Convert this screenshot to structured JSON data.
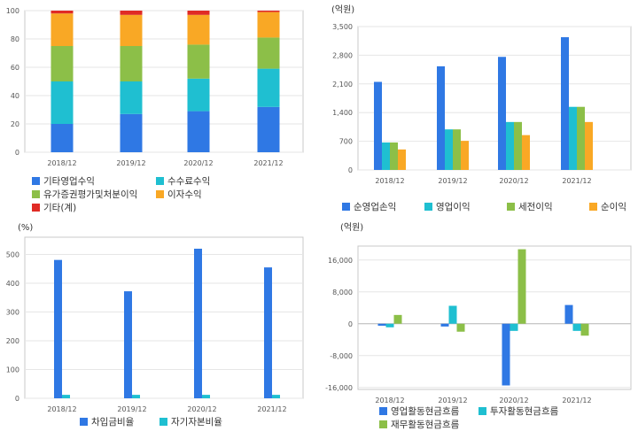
{
  "chart_data": [
    {
      "type": "bar",
      "stacked": true,
      "categories": [
        "2018/12",
        "2019/12",
        "2020/12",
        "2021/12"
      ],
      "ylim": [
        0,
        100
      ],
      "yticks": [
        0,
        20,
        40,
        60,
        80,
        100
      ],
      "unit": "",
      "grid": true,
      "legend_position": "bottom",
      "series": [
        {
          "name": "기타영업수익",
          "color": "#2f78e4",
          "values": [
            20,
            27,
            29,
            32
          ]
        },
        {
          "name": "수수료수익",
          "color": "#1fbfd1",
          "values": [
            30,
            23,
            23,
            27
          ]
        },
        {
          "name": "유가증권평가및처분이익",
          "color": "#8cbf48",
          "values": [
            25,
            25,
            24,
            22
          ]
        },
        {
          "name": "이자수익",
          "color": "#f9a825",
          "values": [
            23,
            22,
            21,
            18
          ]
        },
        {
          "name": "기타(계)",
          "color": "#e02b25",
          "values": [
            2,
            3,
            3,
            1
          ]
        }
      ]
    },
    {
      "type": "bar",
      "categories": [
        "2018/12",
        "2019/12",
        "2020/12",
        "2021/12"
      ],
      "ylim": [
        0,
        3500
      ],
      "yticks": [
        0,
        700,
        1400,
        2100,
        2800,
        3500
      ],
      "unit": "(억원)",
      "grid": true,
      "legend_position": "bottom",
      "series": [
        {
          "name": "순영업손익",
          "color": "#2f78e4",
          "values": [
            2150,
            2530,
            2760,
            3240
          ]
        },
        {
          "name": "영업이익",
          "color": "#1fbfd1",
          "values": [
            670,
            990,
            1170,
            1540
          ]
        },
        {
          "name": "세전이익",
          "color": "#8cbf48",
          "values": [
            670,
            990,
            1170,
            1540
          ]
        },
        {
          "name": "순이익",
          "color": "#f9a825",
          "values": [
            500,
            710,
            850,
            1170
          ]
        }
      ]
    },
    {
      "type": "bar",
      "categories": [
        "2018/12",
        "2019/12",
        "2020/12",
        "2021/12"
      ],
      "ylim": [
        0,
        560
      ],
      "yticks": [
        0,
        100,
        200,
        300,
        400,
        500
      ],
      "unit": "(%)",
      "grid": true,
      "legend_position": "bottom",
      "series": [
        {
          "name": "차입금비율",
          "color": "#2f78e4",
          "values": [
            481,
            372,
            520,
            455
          ]
        },
        {
          "name": "자기자본비율",
          "color": "#1fbfd1",
          "values": [
            12,
            12,
            12,
            12
          ]
        }
      ]
    },
    {
      "type": "bar",
      "categories": [
        "2018/12",
        "2019/12",
        "2020/12",
        "2021/12"
      ],
      "ylim": [
        -16500,
        19500
      ],
      "yticks": [
        -16000,
        -8000,
        0,
        8000,
        16000
      ],
      "ytick_labels": [
        "-16,000",
        "-8,000",
        "0",
        "8,000",
        "16,000"
      ],
      "unit": "(억원)",
      "grid": true,
      "legend_position": "bottom",
      "series": [
        {
          "name": "영업활동현금흐름",
          "color": "#2f78e4",
          "values": [
            -500,
            -700,
            -15500,
            4700
          ]
        },
        {
          "name": "투자활동현금흐름",
          "color": "#1fbfd1",
          "values": [
            -900,
            4500,
            -1800,
            -1800
          ]
        },
        {
          "name": "재무활동현금흐름",
          "color": "#8cbf48",
          "values": [
            2200,
            -2000,
            18700,
            -3000
          ]
        }
      ]
    }
  ]
}
